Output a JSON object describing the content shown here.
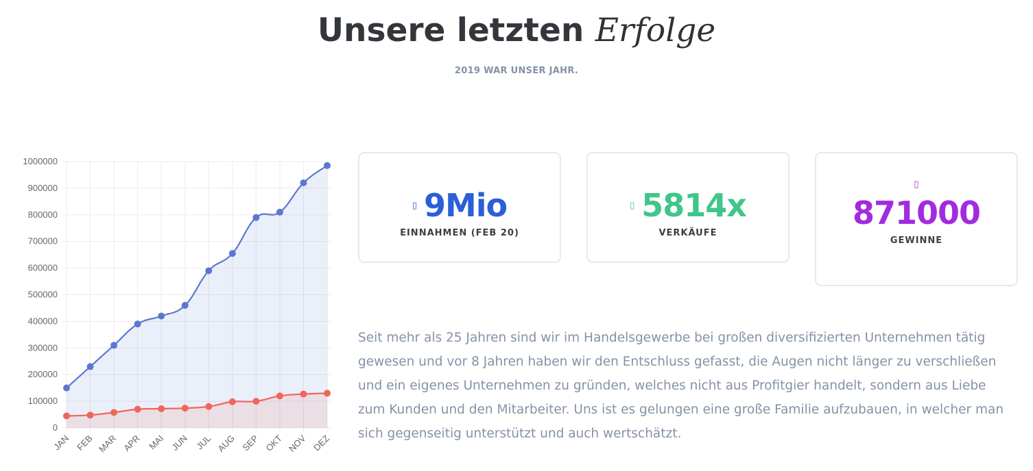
{
  "header": {
    "title_main": "Unsere letzten",
    "title_accent": "Erfolge",
    "subtitle": "2019 WAR UNSER JAHR."
  },
  "colors": {
    "blue": "#5b78d0",
    "red": "#f0665a",
    "stat_blue": "#2b5ed8",
    "stat_green": "#3fc68a",
    "stat_purple": "#a22be0"
  },
  "stats": [
    {
      "icon": "chart-icon",
      "icon_glyph": "▯",
      "value": "9Mio",
      "label": "EINNAHMEN (FEB 20)",
      "color": "#2b5ed8"
    },
    {
      "icon": "cart-icon",
      "icon_glyph": "▯",
      "value": "5814x",
      "label": "VERKÄUFE",
      "color": "#3fc68a"
    },
    {
      "icon": "money-icon",
      "icon_glyph": "▯",
      "value": "871000",
      "label": "GEWINNE",
      "color": "#a22be0"
    }
  ],
  "description": "Seit mehr als 25 Jahren sind wir im Handelsgewerbe bei großen diversifizierten Unternehmen tätig gewesen und vor 8 Jahren haben wir den Entschluss gefasst, die Augen nicht länger zu verschließen und ein eigenes Unternehmen zu gründen, welches nicht aus Profitgier handelt, sondern aus Liebe zum Kunden und den Mitarbeiter. Uns ist es gelungen eine große Familie aufzubauen, in welcher man sich gegenseitig unterstützt und auch wertschätzt.",
  "chart_data": {
    "type": "area",
    "categories": [
      "JAN",
      "FEB",
      "MAR",
      "APR",
      "MAI",
      "JUN",
      "JUL",
      "AUG",
      "SEP",
      "OKT",
      "NOV",
      "DEZ"
    ],
    "series": [
      {
        "color": "#5b78d0",
        "fill": "rgba(91,120,208,0.12)",
        "values": [
          150000,
          230000,
          310000,
          390000,
          420000,
          460000,
          590000,
          655000,
          790000,
          810000,
          920000,
          985000
        ]
      },
      {
        "color": "#f0665a",
        "fill": "rgba(240,102,90,0.12)",
        "values": [
          45000,
          48000,
          58000,
          70000,
          72000,
          74000,
          80000,
          98000,
          100000,
          120000,
          127000,
          130000
        ]
      }
    ],
    "y_ticks": [
      "1000000",
      "900000",
      "800000",
      "700000",
      "600000",
      "500000",
      "400000",
      "300000",
      "200000",
      "100000",
      "0"
    ],
    "ylim": [
      0,
      1000000
    ],
    "grid": true,
    "legend": "none"
  }
}
